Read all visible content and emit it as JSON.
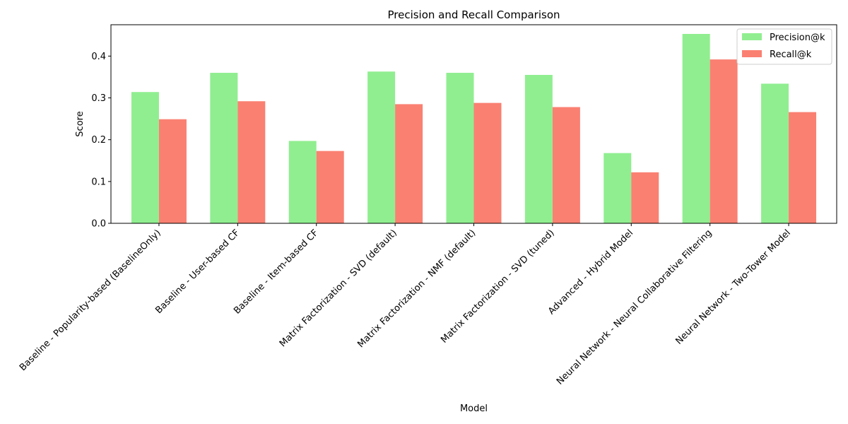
{
  "chart_data": {
    "type": "bar",
    "title": "Precision and Recall Comparison",
    "xlabel": "Model",
    "ylabel": "Score",
    "ylim": [
      0,
      0.475
    ],
    "yticks": [
      0.0,
      0.1,
      0.2,
      0.3,
      0.4
    ],
    "ytick_labels": [
      "0.0",
      "0.1",
      "0.2",
      "0.3",
      "0.4"
    ],
    "categories": [
      "Baseline - Popularity-based (BaselineOnly)",
      "Baseline - User-based CF",
      "Baseline - Item-based CF",
      "Matrix Factorization - SVD (default)",
      "Matrix Factorization - NMF (default)",
      "Matrix Factorization - SVD (tuned)",
      "Advanced - Hybrid Model",
      "Neural Network - Neural Collaborative Filtering",
      "Neural Network - Two-Tower Model"
    ],
    "series": [
      {
        "name": "Precision@k",
        "color": "#90ee90",
        "values": [
          0.314,
          0.36,
          0.197,
          0.363,
          0.36,
          0.355,
          0.168,
          0.453,
          0.334
        ]
      },
      {
        "name": "Recall@k",
        "color": "#fa8072",
        "values": [
          0.249,
          0.292,
          0.173,
          0.285,
          0.288,
          0.278,
          0.122,
          0.392,
          0.266
        ]
      }
    ],
    "legend_position": "top-right",
    "grid": false
  }
}
